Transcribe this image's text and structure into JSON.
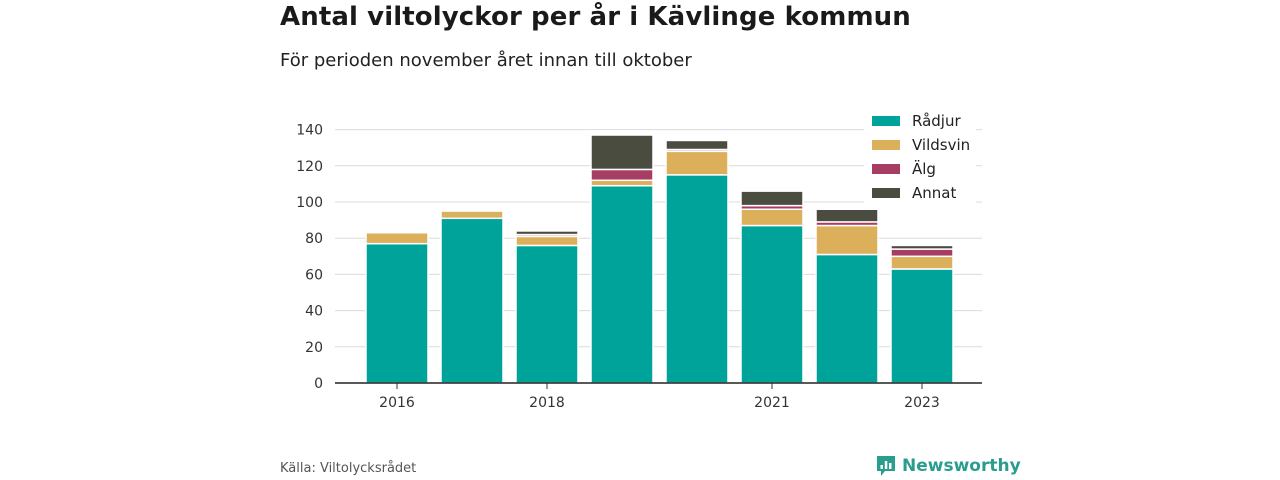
{
  "title": "Antal viltolyckor per år i Kävlinge kommun",
  "subtitle": "För perioden november året innan till oktober",
  "footer": {
    "source": "Källa: Viltolycksrådet",
    "brand": "Newsworthy"
  },
  "colors": {
    "Rådjur": "#00a39a",
    "Vildsvin": "#dcaf5b",
    "Älg": "#a73d63",
    "Annat": "#4a4c3f"
  },
  "chart_data": {
    "type": "bar",
    "stacked": true,
    "categories": [
      "2016",
      "2017",
      "2018",
      "2019",
      "2020",
      "2021",
      "2022",
      "2023"
    ],
    "x_tick_labels": [
      "2016",
      "",
      "2018",
      "",
      "",
      "2021",
      "",
      "2023"
    ],
    "series": [
      {
        "name": "Rådjur",
        "values": [
          77,
          91,
          76,
          109,
          115,
          87,
          71,
          63
        ]
      },
      {
        "name": "Vildsvin",
        "values": [
          6,
          4,
          5,
          3,
          13,
          9,
          16,
          7
        ]
      },
      {
        "name": "Älg",
        "values": [
          0,
          0,
          1,
          6,
          1,
          2,
          2,
          4
        ]
      },
      {
        "name": "Annat",
        "values": [
          0,
          0,
          2,
          19,
          5,
          8,
          7,
          2
        ]
      }
    ],
    "y_ticks": [
      0,
      20,
      40,
      60,
      80,
      100,
      120,
      140
    ],
    "ylim": [
      0,
      150
    ],
    "grid": true,
    "legend_position": "top-right"
  }
}
